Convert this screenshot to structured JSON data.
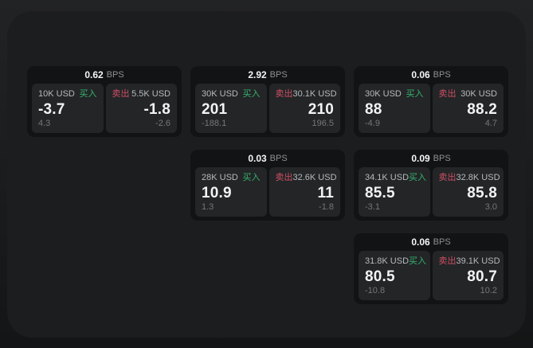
{
  "labels": {
    "bps": "BPS",
    "buy": "买入",
    "sell": "卖出"
  },
  "colors": {
    "page_bg_top": "#222325",
    "page_bg_bottom": "#141516",
    "panel_bg": "#1c1d1f",
    "card_bg": "#121314",
    "tile_bg": "#232527",
    "text_primary": "#f2f3f5",
    "text_secondary": "#b7babc",
    "text_muted": "#74777a",
    "buy_green": "#36b36d",
    "sell_red": "#ce4f63"
  },
  "cards": [
    {
      "bps": "0.62",
      "buy": {
        "size": "10K USD",
        "value": "-3.7",
        "delta": "4.3"
      },
      "sell": {
        "size": "5.5K USD",
        "value": "-1.8",
        "delta": "-2.6"
      }
    },
    {
      "bps": "2.92",
      "buy": {
        "size": "30K USD",
        "value": "201",
        "delta": "-188.1"
      },
      "sell": {
        "size": "30.1K USD",
        "value": "210",
        "delta": "196.5"
      }
    },
    {
      "bps": "0.06",
      "buy": {
        "size": "30K USD",
        "value": "88",
        "delta": "-4.9"
      },
      "sell": {
        "size": "30K USD",
        "value": "88.2",
        "delta": "4.7"
      }
    },
    {
      "bps": "0.03",
      "buy": {
        "size": "28K USD",
        "value": "10.9",
        "delta": "1.3"
      },
      "sell": {
        "size": "32.6K USD",
        "value": "11",
        "delta": "-1.8"
      }
    },
    {
      "bps": "0.09",
      "buy": {
        "size": "34.1K USD",
        "value": "85.5",
        "delta": "-3.1"
      },
      "sell": {
        "size": "32.8K USD",
        "value": "85.8",
        "delta": "3.0"
      }
    },
    {
      "bps": "0.06",
      "buy": {
        "size": "31.8K USD",
        "value": "80.5",
        "delta": "-10.8"
      },
      "sell": {
        "size": "39.1K USD",
        "value": "80.7",
        "delta": "10.2"
      }
    }
  ]
}
